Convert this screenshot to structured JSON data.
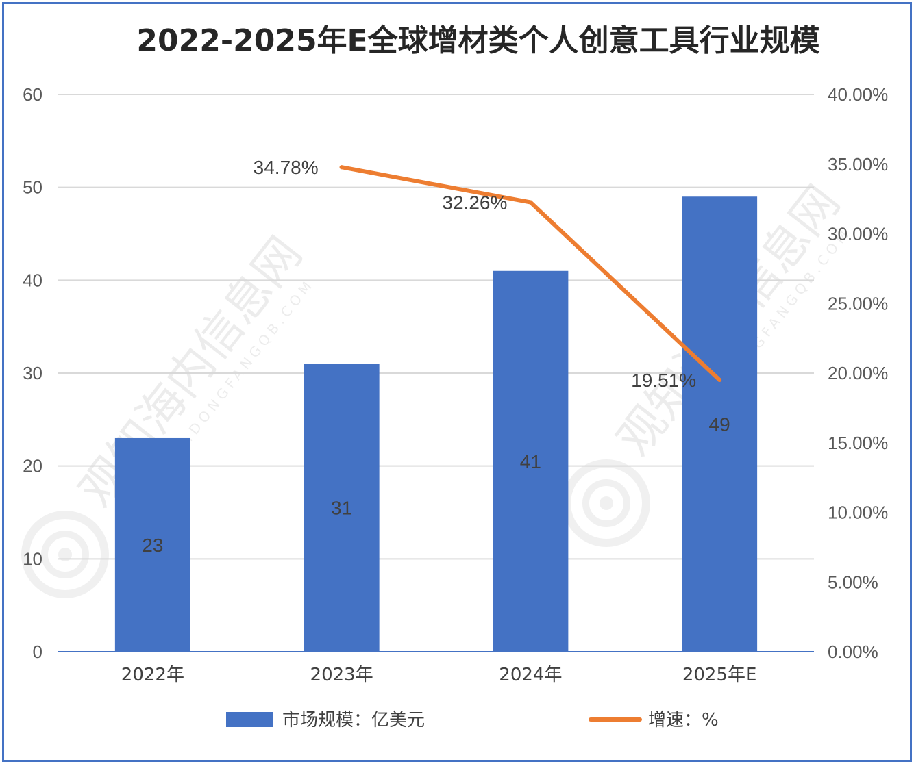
{
  "colors": {
    "bar": "#4472c4",
    "line": "#ed7d31",
    "grid": "#d9d9d9",
    "axis": "#4472c4"
  },
  "watermark": {
    "text": "观知海内信息网",
    "url": "WWW.DONGFANGQB.COM"
  },
  "legend": {
    "bar_label": "市场规模：亿美元",
    "line_label": "增速：%"
  },
  "chart_data": {
    "type": "bar",
    "title": "2022-2025年E全球增材类个人创意工具行业规模",
    "categories": [
      "2022年",
      "2023年",
      "2024年",
      "2025年E"
    ],
    "series": [
      {
        "name": "市场规模：亿美元",
        "type": "bar",
        "axis": "left",
        "values": [
          23,
          31,
          41,
          49
        ],
        "labels": [
          "23",
          "31",
          "41",
          "49"
        ]
      },
      {
        "name": "增速：%",
        "type": "line",
        "axis": "right",
        "values": [
          null,
          34.78,
          32.26,
          19.51
        ],
        "labels": [
          "",
          "34.78%",
          "32.26%",
          "19.51%"
        ]
      }
    ],
    "ylim": [
      0,
      60
    ],
    "yticks": [
      "0",
      "10",
      "20",
      "30",
      "40",
      "50",
      "60"
    ],
    "y2lim": [
      0,
      40
    ],
    "y2ticks": [
      "0.00%",
      "5.00%",
      "10.00%",
      "15.00%",
      "20.00%",
      "25.00%",
      "30.00%",
      "35.00%",
      "40.00%"
    ],
    "grid": true,
    "legend_position": "bottom"
  }
}
